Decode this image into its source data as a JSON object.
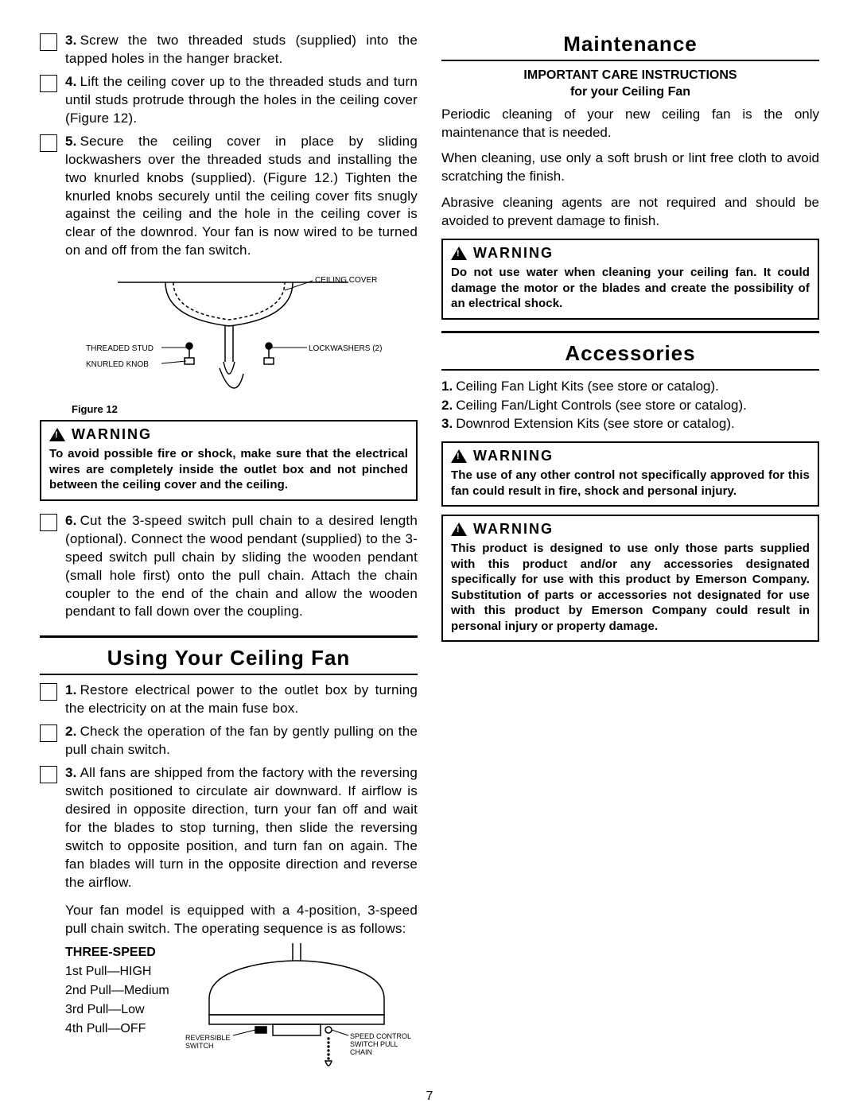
{
  "page_number": "7",
  "left": {
    "steps_a": [
      {
        "n": "3.",
        "t": "Screw the two threaded studs (supplied) into the tapped holes in the hanger bracket."
      },
      {
        "n": "4.",
        "t": "Lift the ceiling cover up to the threaded studs and turn until studs protrude through the holes in the ceiling cover (Figure 12)."
      },
      {
        "n": "5.",
        "t": "Secure the ceiling cover in place by sliding lockwashers over the threaded studs and installing the two knurled knobs (supplied). (Figure 12.) Tighten the knurled knobs securely until the ceiling cover fits snugly against the ceiling and the hole in the ceiling cover is clear of the downrod. Your fan is now wired to be turned on and off from the fan switch."
      }
    ],
    "fig12": {
      "caption": "Figure 12",
      "labels": {
        "ceiling_cover": "CEILING COVER",
        "threaded_stud": "THREADED STUD",
        "knurled_knob": "KNURLED KNOB",
        "lockwashers": "LOCKWASHERS (2)"
      }
    },
    "warning1": {
      "label": "WARNING",
      "text": "To avoid possible fire or shock, make sure that the electrical wires are completely inside the outlet box and not pinched between the ceiling cover and the ceiling."
    },
    "steps_b": [
      {
        "n": "6.",
        "t": "Cut the 3-speed switch pull chain to a desired length (optional). Connect the wood pendant (supplied) to the 3-speed switch pull chain by sliding the wooden pendant (small hole first) onto the pull chain. Attach the chain coupler to the end of the chain and allow the wooden pendant to fall down over the coupling."
      }
    ],
    "using_title": "Using Your Ceiling Fan",
    "steps_c": [
      {
        "n": "1.",
        "t": "Restore electrical power to the outlet box by turning the electricity on at the main fuse box."
      },
      {
        "n": "2.",
        "t": "Check the operation of the fan by gently pulling on the pull chain switch."
      },
      {
        "n": "3.",
        "t": "All fans are shipped from the factory with the reversing switch positioned to circulate air downward. If airflow is desired in opposite direction, turn your fan off and wait for the blades to stop turning, then slide the reversing switch to opposite position, and turn fan on again. The fan blades will turn in the opposite direction and reverse the airflow."
      }
    ],
    "step_c3_extra": "Your fan model is equipped with a 4-position, 3-speed pull chain switch. The operating sequence is as follows:",
    "speed": {
      "hdr": "THREE-SPEED",
      "l1": "1st Pull—HIGH",
      "l2": "2nd Pull—Medium",
      "l3": "3rd Pull—Low",
      "l4": "4th Pull—OFF"
    },
    "fig13_labels": {
      "reversible": "REVERSIBLE SWITCH",
      "speed_ctrl": "SPEED CONTROL SWITCH PULL CHAIN"
    }
  },
  "right": {
    "maint_title": "Maintenance",
    "care_hdr1": "IMPORTANT CARE INSTRUCTIONS",
    "care_hdr2": "for your Ceiling Fan",
    "p1": "Periodic cleaning of your new ceiling fan is the only maintenance that is needed.",
    "p2": "When cleaning, use only a soft brush or lint free cloth to avoid scratching the finish.",
    "p3": "Abrasive cleaning agents are not required and should be avoided to prevent damage to finish.",
    "warning2": {
      "label": "WARNING",
      "text": "Do not use water when cleaning your ceiling fan. It could damage the motor or the blades and create the possibility of an electrical shock."
    },
    "acc_title": "Accessories",
    "acc_items": [
      {
        "n": "1.",
        "t": "Ceiling Fan Light Kits (see store or catalog)."
      },
      {
        "n": "2.",
        "t": "Ceiling Fan/Light Controls (see store or catalog)."
      },
      {
        "n": "3.",
        "t": "Downrod Extension Kits (see store or catalog)."
      }
    ],
    "warning3": {
      "label": "WARNING",
      "text": "The use of any other control not specifically approved for this fan could result in fire, shock and personal injury."
    },
    "warning4": {
      "label": "WARNING",
      "text": "This product is designed to use only those parts supplied with this product and/or any accessories designated specifically for use with this product by Emerson Company. Substitution of parts or accessories not designated for use with this product by Emerson Company could result in personal injury or property damage."
    }
  }
}
